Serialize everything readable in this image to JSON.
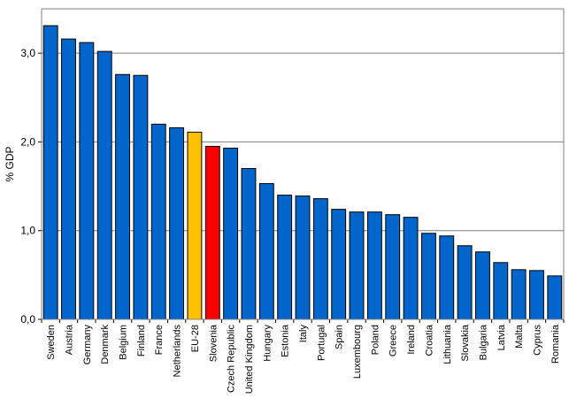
{
  "chart_data": {
    "type": "bar",
    "title": "",
    "xlabel": "",
    "ylabel": "% GDP",
    "ylim": [
      0,
      3.5
    ],
    "yticks": [
      {
        "value": 0,
        "label": "0,0"
      },
      {
        "value": 1,
        "label": "1,0"
      },
      {
        "value": 2,
        "label": "2,0"
      },
      {
        "value": 3,
        "label": "3,0"
      }
    ],
    "grid": true,
    "legend": "none",
    "categories": [
      "Sweden",
      "Austria",
      "Germany",
      "Denmark",
      "Belgium",
      "Finland",
      "France",
      "Netherlands",
      "EU-28",
      "Slovenia",
      "Czech Republic",
      "United Kingdom",
      "Hungary",
      "Estonia",
      "Italy",
      "Portugal",
      "Spain",
      "Luxembourg",
      "Poland",
      "Greece",
      "Ireland",
      "Croatia",
      "Lithuania",
      "Slovakia",
      "Bulgaria",
      "Latvia",
      "Malta",
      "Cyprus",
      "Romania"
    ],
    "values": [
      3.31,
      3.16,
      3.12,
      3.02,
      2.76,
      2.75,
      2.2,
      2.16,
      2.11,
      1.95,
      1.93,
      1.7,
      1.53,
      1.4,
      1.39,
      1.36,
      1.24,
      1.21,
      1.21,
      1.18,
      1.15,
      0.97,
      0.94,
      0.83,
      0.76,
      0.64,
      0.56,
      0.55,
      0.49
    ],
    "colors": {
      "default": "#0066cc",
      "highlight_eu": "#ffc000",
      "highlight_si": "#ff0000",
      "outline": "#000000",
      "grid": "#808080"
    },
    "highlights": {
      "EU-28": "highlight_eu",
      "Slovenia": "highlight_si"
    }
  }
}
